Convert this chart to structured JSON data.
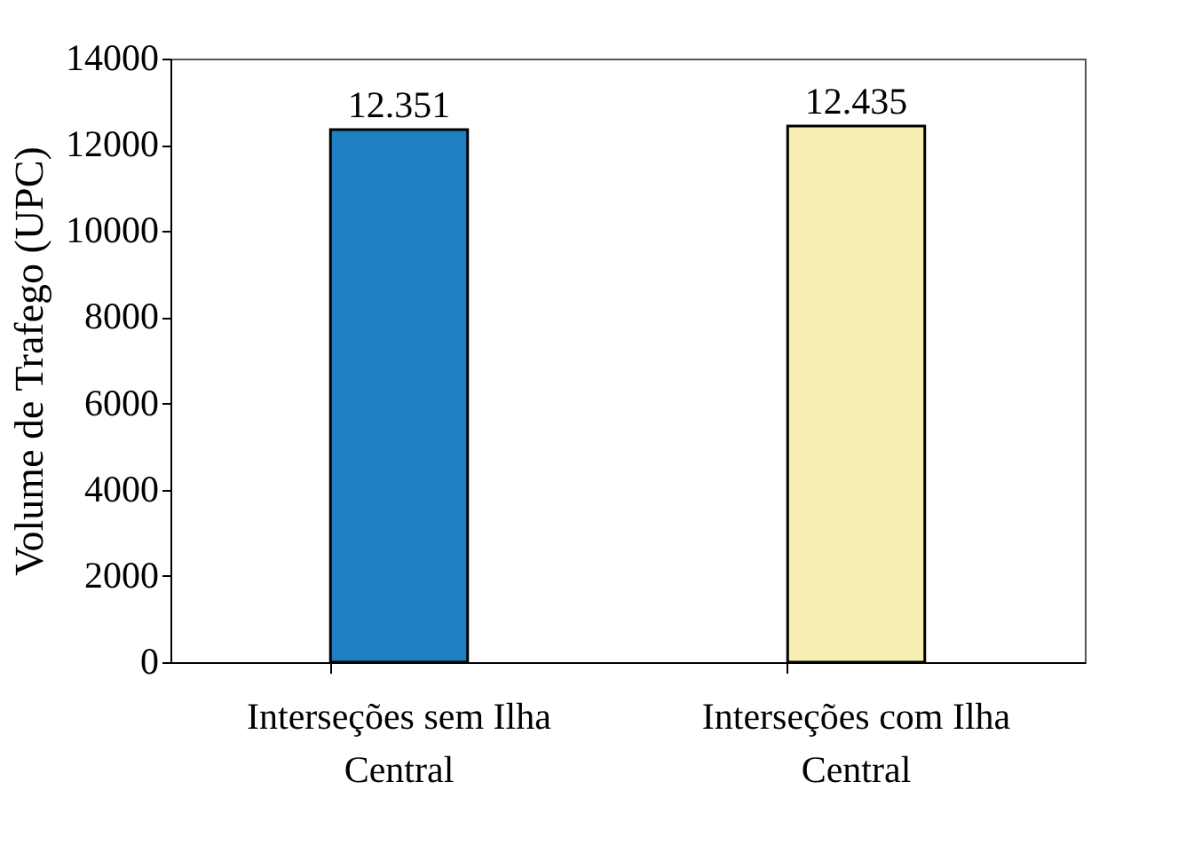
{
  "chart_data": {
    "type": "bar",
    "ylabel": "Volume de Trafego (UPC)",
    "categories": [
      "Interseções sem Ilha Central",
      "Interseções com Ilha Central"
    ],
    "values": [
      12351,
      12435
    ],
    "colors": [
      "#1e7fc2",
      "#f7f0b2"
    ],
    "value_labels": [
      "12.351",
      "12.435"
    ],
    "ylim": [
      0,
      14000
    ],
    "yticks": [
      0,
      2000,
      4000,
      6000,
      8000,
      10000,
      12000,
      14000
    ],
    "grid": false,
    "legend": false
  }
}
